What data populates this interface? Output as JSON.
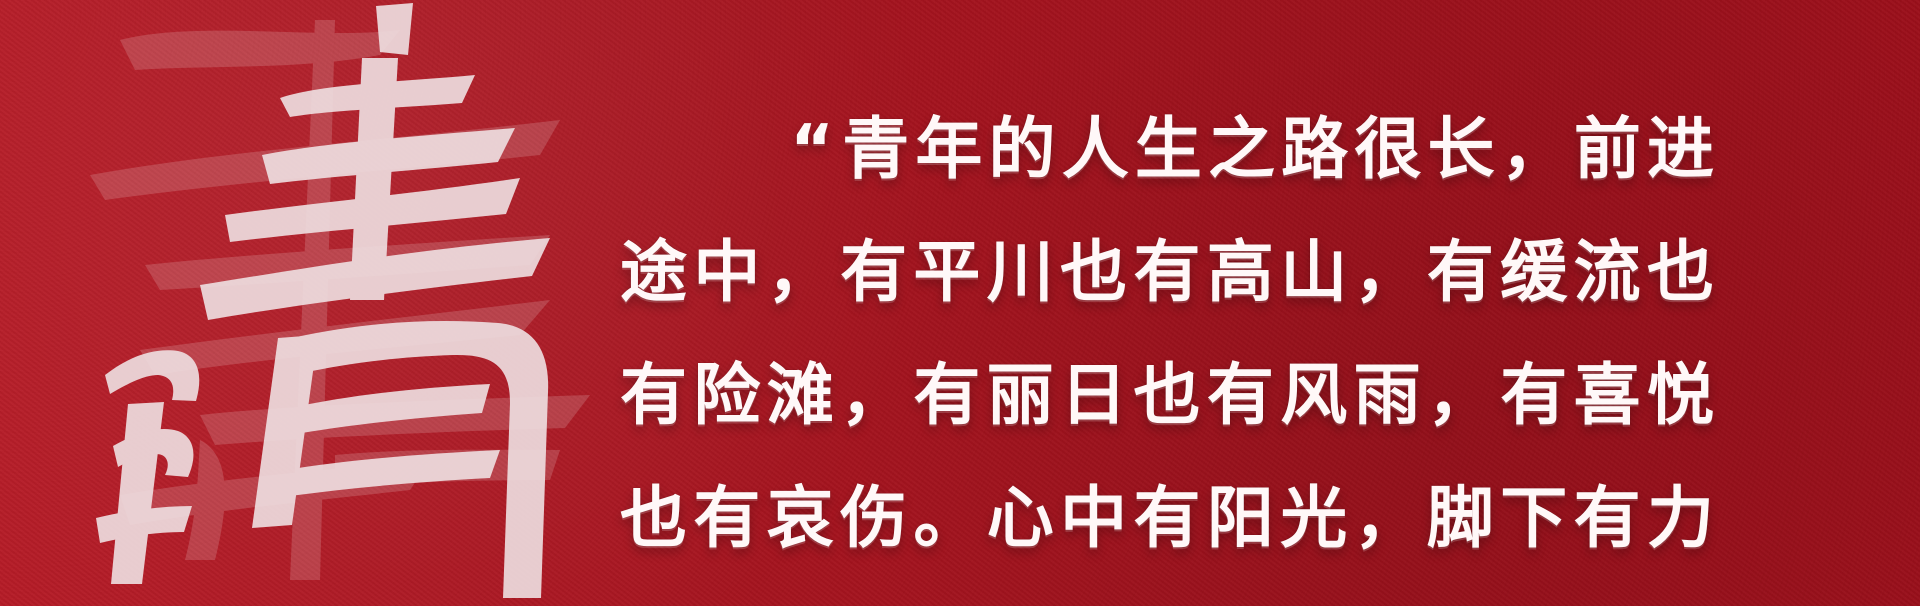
{
  "background": {
    "primary_color": "#a8161f",
    "accent_color": "#f4e8e8",
    "decorative_character": "青",
    "decorative_character_secondary": "春"
  },
  "quote": {
    "opening_mark": "“",
    "line_1": "青年的人生之路很长，前进",
    "line_2": "途中，有平川也有高山，有缓流也",
    "line_3": "有险滩，有丽日也有风雨，有喜悦",
    "line_4": "也有哀伤。心中有阳光，脚下有力"
  }
}
